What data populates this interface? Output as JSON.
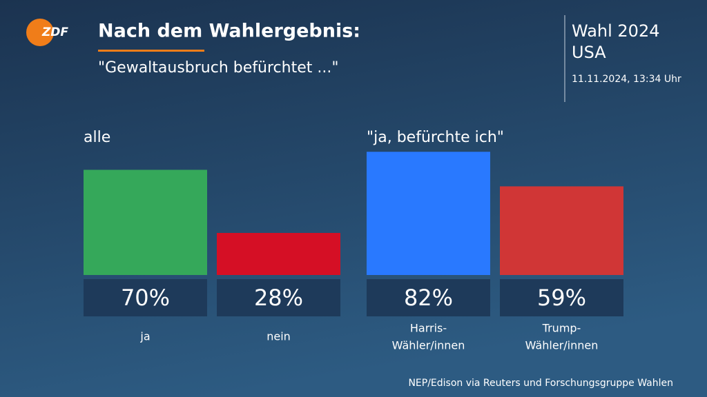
{
  "header": {
    "logo": "ZDF",
    "title": "Nach dem Wahlergebnis:",
    "subtitle": "\"Gewaltausbruch befürchtet ...\"",
    "election": "Wahl 2024",
    "country": "USA",
    "timestamp": "11.11.2024, 13:34 Uhr"
  },
  "chart_data": [
    {
      "type": "bar",
      "title": "alle",
      "categories": [
        "ja",
        "nein"
      ],
      "values": [
        70,
        28
      ],
      "value_labels": [
        "70%",
        "28%"
      ],
      "colors": [
        "#35a85a",
        "#d50f25"
      ]
    },
    {
      "type": "bar",
      "title": "\"ja, befürchte ich\"",
      "categories": [
        "Harris-\nWähler/innen",
        "Trump-\nWähler/innen"
      ],
      "values": [
        82,
        59
      ],
      "value_labels": [
        "82%",
        "59%"
      ],
      "colors": [
        "#2979ff",
        "#d03636"
      ]
    }
  ],
  "source": "NEP/Edison via Reuters und Forschungsgruppe Wahlen"
}
